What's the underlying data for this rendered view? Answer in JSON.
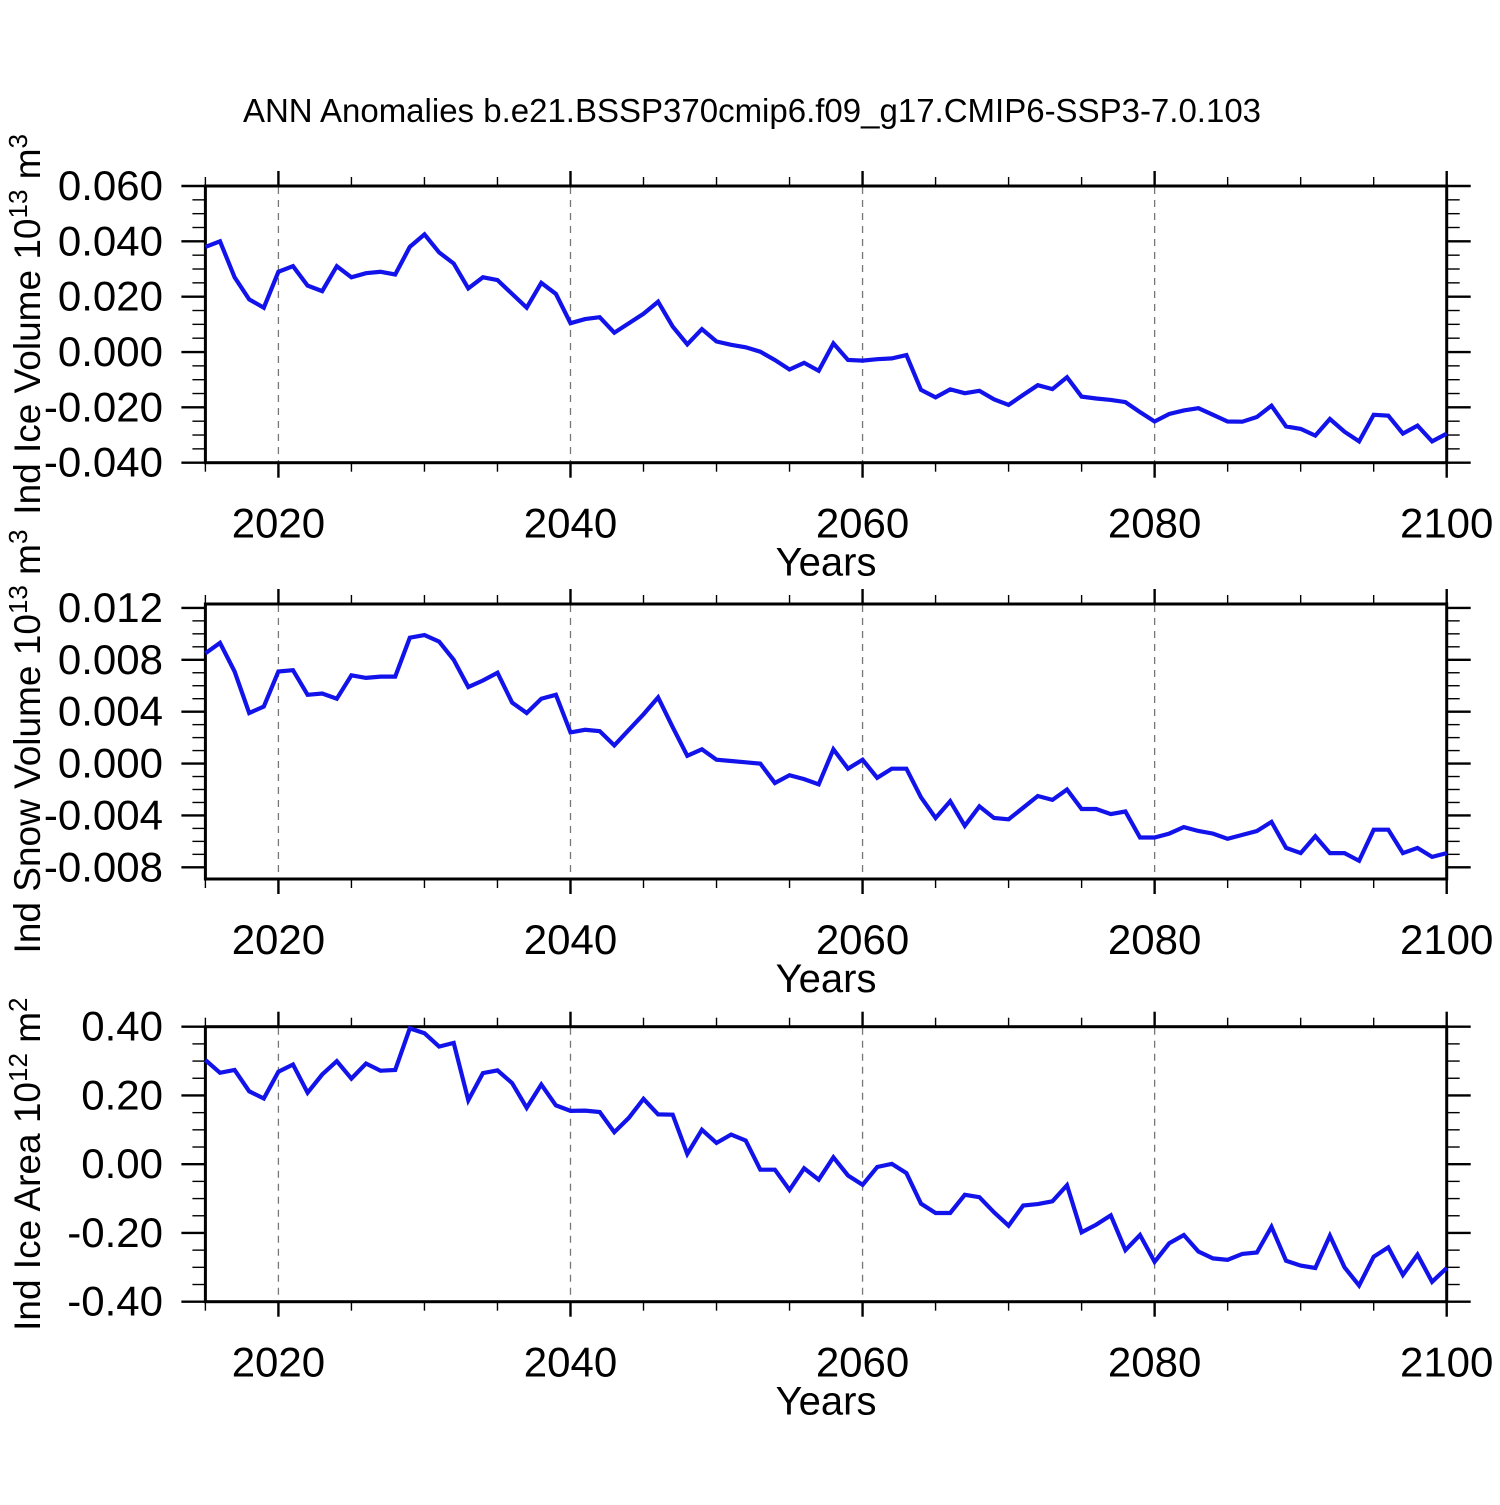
{
  "title": "ANN Anomalies b.e21.BSSP370cmip6.f09_g17.CMIP6-SSP3-7.0.103",
  "background_color": "#ffffff",
  "line_color": "#1212eb",
  "axis_color": "#000000",
  "grid_color": "#777777",
  "chart_data": [
    {
      "type": "line",
      "ylabel": "Ind Ice Volume 10^13 m^3",
      "ylabel_parts": [
        {
          "text": "Ind Ice Volume 10"
        },
        {
          "text": "13",
          "sup": true
        },
        {
          "text": " m"
        },
        {
          "text": "3",
          "sup": true
        }
      ],
      "xlabel": "Years",
      "x_start": 2015,
      "x_end": 2100,
      "x_step": 1,
      "ylim": [
        -0.04,
        0.06
      ],
      "ytick_values": [
        0.06,
        0.04,
        0.02,
        0.0,
        -0.02,
        -0.04
      ],
      "ytick_labels": [
        "0.060",
        "0.040",
        "0.020",
        "0.000",
        "-0.020",
        "-0.040"
      ],
      "y_minor_step": 0.005,
      "xlim": [
        2015,
        2100
      ],
      "xtick_values": [
        2020,
        2040,
        2060,
        2080,
        2100
      ],
      "xtick_labels": [
        "2020",
        "2040",
        "2060",
        "2080",
        "2100"
      ],
      "x_minor_step": 5,
      "grid_x": [
        2020,
        2040,
        2060,
        2080
      ],
      "grid_style": "vertical-dashed",
      "legend": "none",
      "values": [
        0.038,
        0.04,
        0.027,
        0.019,
        0.016,
        0.029,
        0.031,
        0.024,
        0.022,
        0.031,
        0.027,
        0.0285,
        0.029,
        0.028,
        0.038,
        0.0425,
        0.036,
        0.032,
        0.023,
        0.027,
        0.026,
        0.021,
        0.016,
        0.025,
        0.021,
        0.0104,
        0.0119,
        0.0126,
        0.007,
        0.0104,
        0.0138,
        0.0182,
        0.0092,
        0.0028,
        0.0083,
        0.0038,
        0.0026,
        0.0017,
        0.0001,
        -0.0029,
        -0.0063,
        -0.0039,
        -0.0068,
        0.0031,
        -0.0029,
        -0.0031,
        -0.0026,
        -0.0023,
        -0.0011,
        -0.0137,
        -0.0164,
        -0.0135,
        -0.0149,
        -0.014,
        -0.0171,
        -0.0191,
        -0.0155,
        -0.012,
        -0.0134,
        -0.0091,
        -0.0161,
        -0.0168,
        -0.0173,
        -0.0181,
        -0.0217,
        -0.0251,
        -0.0224,
        -0.0211,
        -0.0203,
        -0.0227,
        -0.0251,
        -0.0252,
        -0.0235,
        -0.0194,
        -0.0269,
        -0.0278,
        -0.0302,
        -0.0242,
        -0.0288,
        -0.0323,
        -0.0227,
        -0.023,
        -0.0295,
        -0.0266,
        -0.0323,
        -0.0295
      ]
    },
    {
      "type": "line",
      "ylabel": "Ind Snow Volume 10^13 m^3",
      "ylabel_parts": [
        {
          "text": "Ind Snow Volume 10"
        },
        {
          "text": "13",
          "sup": true
        },
        {
          "text": " m"
        },
        {
          "text": "3",
          "sup": true
        }
      ],
      "xlabel": "Years",
      "x_start": 2015,
      "x_end": 2100,
      "x_step": 1,
      "ylim": [
        -0.0089,
        0.0123
      ],
      "ytick_values": [
        0.012,
        0.008,
        0.004,
        0.0,
        -0.004,
        -0.008
      ],
      "ytick_labels": [
        "0.012",
        "0.008",
        "0.004",
        "0.000",
        "-0.004",
        "-0.008"
      ],
      "y_minor_step": 0.001,
      "xlim": [
        2015,
        2100
      ],
      "xtick_values": [
        2020,
        2040,
        2060,
        2080,
        2100
      ],
      "xtick_labels": [
        "2020",
        "2040",
        "2060",
        "2080",
        "2100"
      ],
      "x_minor_step": 5,
      "grid_x": [
        2020,
        2040,
        2060,
        2080
      ],
      "grid_style": "vertical-dashed",
      "legend": "none",
      "values": [
        0.0085,
        0.0093,
        0.0071,
        0.0039,
        0.0044,
        0.0071,
        0.0072,
        0.0053,
        0.0054,
        0.005,
        0.0068,
        0.0066,
        0.0067,
        0.0067,
        0.0097,
        0.0099,
        0.0094,
        0.008,
        0.0059,
        0.0064,
        0.007,
        0.0047,
        0.0039,
        0.005,
        0.0053,
        0.0024,
        0.0026,
        0.0025,
        0.0014,
        0.0026,
        0.0038,
        0.0051,
        0.0028,
        0.0006,
        0.0011,
        0.0003,
        0.0002,
        0.0001,
        0.0,
        -0.0015,
        -0.0009,
        -0.0012,
        -0.0016,
        0.0011,
        -0.0004,
        0.0003,
        -0.0011,
        -0.0004,
        -0.0004,
        -0.0026,
        -0.0042,
        -0.0029,
        -0.0048,
        -0.0033,
        -0.0042,
        -0.0043,
        -0.0034,
        -0.0025,
        -0.0028,
        -0.002,
        -0.0035,
        -0.0035,
        -0.0039,
        -0.0037,
        -0.0057,
        -0.0057,
        -0.0054,
        -0.0049,
        -0.0052,
        -0.0054,
        -0.0058,
        -0.0055,
        -0.0052,
        -0.0045,
        -0.0065,
        -0.0069,
        -0.0056,
        -0.0069,
        -0.0069,
        -0.0075,
        -0.0051,
        -0.0051,
        -0.0069,
        -0.0065,
        -0.0072,
        -0.0069
      ]
    },
    {
      "type": "line",
      "ylabel": "Ind Ice Area 10^12 m^2",
      "ylabel_parts": [
        {
          "text": "Ind Ice Area 10"
        },
        {
          "text": "12",
          "sup": true
        },
        {
          "text": " m"
        },
        {
          "text": "2",
          "sup": true
        }
      ],
      "xlabel": "Years",
      "x_start": 2015,
      "x_end": 2100,
      "x_step": 1,
      "ylim": [
        -0.4,
        0.4
      ],
      "ytick_values": [
        0.4,
        0.2,
        0.0,
        -0.2,
        -0.4
      ],
      "ytick_labels": [
        "0.40",
        "0.20",
        "0.00",
        "-0.20",
        "-0.40"
      ],
      "y_minor_step": 0.05,
      "xlim": [
        2015,
        2100
      ],
      "xtick_values": [
        2020,
        2040,
        2060,
        2080,
        2100
      ],
      "xtick_labels": [
        "2020",
        "2040",
        "2060",
        "2080",
        "2100"
      ],
      "x_minor_step": 5,
      "grid_x": [
        2020,
        2040,
        2060,
        2080
      ],
      "grid_style": "vertical-dashed",
      "legend": "none",
      "values": [
        0.303,
        0.266,
        0.274,
        0.212,
        0.191,
        0.269,
        0.29,
        0.208,
        0.261,
        0.3,
        0.249,
        0.293,
        0.272,
        0.274,
        0.395,
        0.381,
        0.342,
        0.353,
        0.186,
        0.265,
        0.273,
        0.236,
        0.164,
        0.232,
        0.171,
        0.155,
        0.156,
        0.152,
        0.093,
        0.135,
        0.19,
        0.145,
        0.144,
        0.03,
        0.1,
        0.062,
        0.086,
        0.069,
        -0.016,
        -0.016,
        -0.075,
        -0.012,
        -0.045,
        0.02,
        -0.033,
        -0.06,
        -0.008,
        0.001,
        -0.026,
        -0.115,
        -0.142,
        -0.142,
        -0.089,
        -0.096,
        -0.14,
        -0.179,
        -0.12,
        -0.116,
        -0.108,
        -0.061,
        -0.198,
        -0.176,
        -0.149,
        -0.25,
        -0.206,
        -0.284,
        -0.23,
        -0.206,
        -0.254,
        -0.274,
        -0.278,
        -0.261,
        -0.257,
        -0.182,
        -0.281,
        -0.295,
        -0.302,
        -0.208,
        -0.3,
        -0.353,
        -0.269,
        -0.242,
        -0.322,
        -0.263,
        -0.342,
        -0.302
      ]
    }
  ]
}
